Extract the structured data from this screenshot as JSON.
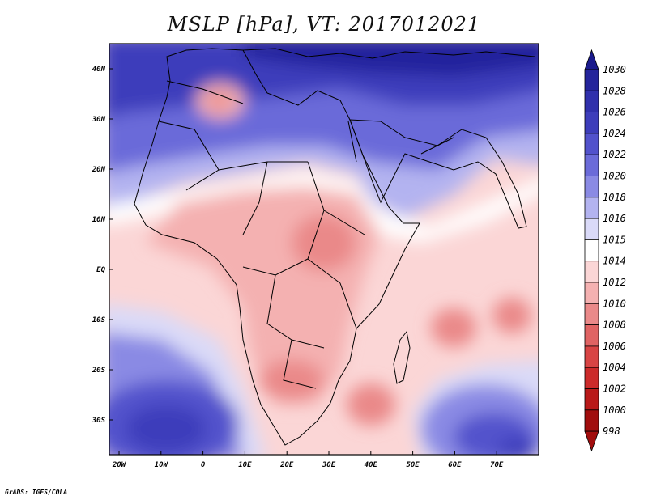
{
  "title": "MSLP [hPa], VT: 2017012021",
  "credit": "GrADS: IGES/COLA",
  "map": {
    "lon_ticks": [
      "20W",
      "10W",
      "0",
      "10E",
      "20E",
      "30E",
      "40E",
      "50E",
      "60E",
      "70E"
    ],
    "lat_ticks": [
      "40N",
      "30N",
      "20N",
      "10N",
      "EQ",
      "10S",
      "20S",
      "30S"
    ]
  },
  "colorbar": {
    "levels": [
      "1030",
      "1028",
      "1026",
      "1024",
      "1022",
      "1020",
      "1018",
      "1016",
      "1015",
      "1014",
      "1012",
      "1010",
      "1008",
      "1006",
      "1004",
      "1002",
      "1000",
      "998"
    ],
    "colors": [
      "#1a1a8c",
      "#24249c",
      "#3030ac",
      "#3d3dbb",
      "#5252cc",
      "#6b6bd9",
      "#8a8ae4",
      "#b3b3f0",
      "#dadaf8",
      "#ffffff",
      "#fbd6d6",
      "#f4b1b1",
      "#ea8989",
      "#e06363",
      "#d84444",
      "#cc2a2a",
      "#b91919",
      "#a10d0d"
    ]
  },
  "chart_data": {
    "type": "heatmap",
    "title": "MSLP [hPa], VT: 2017012021",
    "xlabel": "",
    "ylabel": "",
    "x_ticks": [
      "20W",
      "10W",
      "0",
      "10E",
      "20E",
      "30E",
      "40E",
      "50E",
      "60E",
      "70E"
    ],
    "y_ticks": [
      "40N",
      "30N",
      "20N",
      "10N",
      "EQ",
      "10S",
      "20S",
      "30S"
    ],
    "xlim": [
      -22,
      80
    ],
    "ylim": [
      -37,
      45
    ],
    "color_levels": [
      998,
      1000,
      1002,
      1004,
      1006,
      1008,
      1010,
      1012,
      1014,
      1015,
      1016,
      1018,
      1020,
      1022,
      1024,
      1026,
      1028,
      1030
    ]
  }
}
